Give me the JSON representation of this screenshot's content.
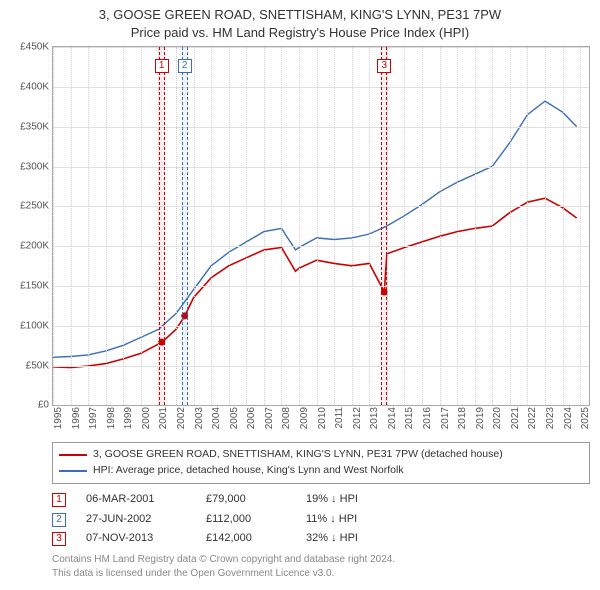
{
  "title": {
    "line1": "3, GOOSE GREEN ROAD, SNETTISHAM, KING'S LYNN, PE31 7PW",
    "line2": "Price paid vs. HM Land Registry's House Price Index (HPI)"
  },
  "chart": {
    "type": "line",
    "background_color": "#ffffff",
    "grid_color": "#e0e0e0",
    "axis_color": "#aaaaaa",
    "xlim": [
      1995,
      2025.5
    ],
    "ylim": [
      0,
      450000
    ],
    "ytick_step": 50000,
    "yticks": [
      "£0",
      "£50K",
      "£100K",
      "£150K",
      "£200K",
      "£250K",
      "£300K",
      "£350K",
      "£400K",
      "£450K"
    ],
    "xticks": [
      1995,
      1996,
      1997,
      1998,
      1999,
      2000,
      2001,
      2002,
      2003,
      2004,
      2005,
      2006,
      2007,
      2008,
      2009,
      2010,
      2011,
      2012,
      2013,
      2014,
      2015,
      2016,
      2017,
      2018,
      2019,
      2020,
      2021,
      2022,
      2023,
      2024,
      2025
    ],
    "series": [
      {
        "name": "property",
        "label": "3, GOOSE GREEN ROAD, SNETTISHAM, KING'S LYNN, PE31 7PW (detached house)",
        "color": "#cc0000",
        "line_width": 1.6,
        "data": [
          [
            1995,
            48000
          ],
          [
            1996,
            47000
          ],
          [
            1997,
            49000
          ],
          [
            1998,
            52000
          ],
          [
            1999,
            58000
          ],
          [
            2000,
            65000
          ],
          [
            2001.2,
            79000
          ],
          [
            2002,
            95000
          ],
          [
            2002.5,
            112000
          ],
          [
            2003,
            135000
          ],
          [
            2004,
            160000
          ],
          [
            2005,
            175000
          ],
          [
            2006,
            185000
          ],
          [
            2007,
            195000
          ],
          [
            2008,
            198000
          ],
          [
            2008.8,
            168000
          ],
          [
            2009,
            172000
          ],
          [
            2010,
            182000
          ],
          [
            2011,
            178000
          ],
          [
            2012,
            175000
          ],
          [
            2013,
            178000
          ],
          [
            2013.85,
            142000
          ],
          [
            2014,
            190000
          ],
          [
            2015,
            198000
          ],
          [
            2016,
            205000
          ],
          [
            2017,
            212000
          ],
          [
            2018,
            218000
          ],
          [
            2019,
            222000
          ],
          [
            2020,
            225000
          ],
          [
            2021,
            242000
          ],
          [
            2022,
            255000
          ],
          [
            2023,
            260000
          ],
          [
            2024,
            248000
          ],
          [
            2024.8,
            235000
          ]
        ]
      },
      {
        "name": "hpi",
        "label": "HPI: Average price, detached house, King's Lynn and West Norfolk",
        "color": "#3a6fb7",
        "line_width": 1.4,
        "data": [
          [
            1995,
            60000
          ],
          [
            1996,
            61000
          ],
          [
            1997,
            63000
          ],
          [
            1998,
            68000
          ],
          [
            1999,
            75000
          ],
          [
            2000,
            85000
          ],
          [
            2001,
            95000
          ],
          [
            2002,
            115000
          ],
          [
            2003,
            145000
          ],
          [
            2004,
            175000
          ],
          [
            2005,
            192000
          ],
          [
            2006,
            205000
          ],
          [
            2007,
            218000
          ],
          [
            2008,
            222000
          ],
          [
            2008.8,
            195000
          ],
          [
            2009,
            198000
          ],
          [
            2010,
            210000
          ],
          [
            2011,
            208000
          ],
          [
            2012,
            210000
          ],
          [
            2013,
            215000
          ],
          [
            2014,
            225000
          ],
          [
            2015,
            238000
          ],
          [
            2016,
            252000
          ],
          [
            2017,
            268000
          ],
          [
            2018,
            280000
          ],
          [
            2019,
            290000
          ],
          [
            2020,
            300000
          ],
          [
            2021,
            330000
          ],
          [
            2022,
            365000
          ],
          [
            2023,
            382000
          ],
          [
            2024,
            368000
          ],
          [
            2024.8,
            350000
          ]
        ]
      }
    ],
    "markers": [
      {
        "n": "1",
        "x": 2001.18,
        "color": "#cc0000"
      },
      {
        "n": "2",
        "x": 2002.49,
        "color": "#3a6fb7"
      },
      {
        "n": "3",
        "x": 2013.85,
        "color": "#cc0000"
      }
    ],
    "sale_points": [
      {
        "x": 2001.18,
        "y": 79000,
        "color": "#cc0000"
      },
      {
        "x": 2002.49,
        "y": 112000,
        "color": "#cc0000"
      },
      {
        "x": 2013.85,
        "y": 142000,
        "color": "#cc0000"
      }
    ]
  },
  "legend": {
    "items": [
      {
        "color": "#cc0000",
        "label": "3, GOOSE GREEN ROAD, SNETTISHAM, KING'S LYNN, PE31 7PW (detached house)"
      },
      {
        "color": "#3a6fb7",
        "label": "HPI: Average price, detached house, King's Lynn and West Norfolk"
      }
    ]
  },
  "sales": [
    {
      "n": "1",
      "date": "06-MAR-2001",
      "price": "£79,000",
      "delta": "19% ↓ HPI",
      "color": "#cc0000"
    },
    {
      "n": "2",
      "date": "27-JUN-2002",
      "price": "£112,000",
      "delta": "11% ↓ HPI",
      "color": "#3a6fb7"
    },
    {
      "n": "3",
      "date": "07-NOV-2013",
      "price": "£142,000",
      "delta": "32% ↓ HPI",
      "color": "#cc0000"
    }
  ],
  "attribution": {
    "line1": "Contains HM Land Registry data © Crown copyright and database right 2024.",
    "line2": "This data is licensed under the Open Government Licence v3.0."
  }
}
